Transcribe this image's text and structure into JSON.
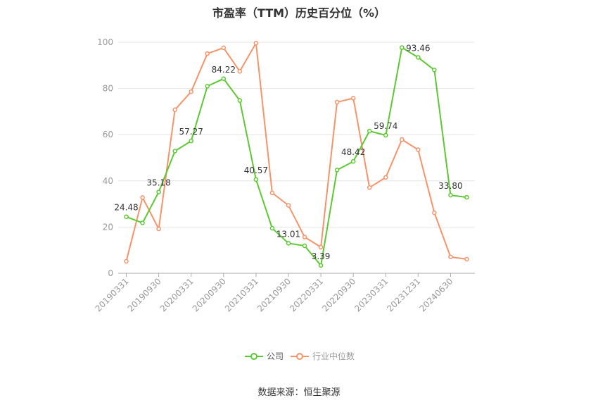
{
  "chart_data": {
    "type": "line",
    "title": "市盈率（TTM）历史百分位（%）",
    "xlabel": "",
    "ylabel": "",
    "ylim": [
      0,
      100
    ],
    "yticks": [
      0,
      20,
      40,
      60,
      80,
      100
    ],
    "grid": true,
    "legend_position": "bottom",
    "x": [
      "20190331",
      "20190630",
      "20190930",
      "20191231",
      "20200331",
      "20200630",
      "20200930",
      "20201231",
      "20210331",
      "20210630",
      "20210930",
      "20211231",
      "20220331",
      "20220630",
      "20220930",
      "20221231",
      "20230331",
      "20230630",
      "20231231",
      "20240331",
      "20240630",
      "20240930"
    ],
    "xtick_labels": [
      "20190331",
      "20190930",
      "20200331",
      "20200930",
      "20210331",
      "20210930",
      "20220331",
      "20220930",
      "20230331",
      "20231231",
      "20240630"
    ],
    "series": [
      {
        "name": "公司",
        "color": "#5dc932",
        "values": [
          24.48,
          21.8,
          35.18,
          52.9,
          57.27,
          81.0,
          84.22,
          74.8,
          40.57,
          19.5,
          13.01,
          11.9,
          3.39,
          44.7,
          48.42,
          61.6,
          59.74,
          97.7,
          93.46,
          88.0,
          33.8,
          32.9
        ],
        "labels": {
          "0": "24.48",
          "2": "35.18",
          "4": "57.27",
          "6": "84.22",
          "8": "40.57",
          "10": "13.01",
          "12": "3.39",
          "14": "48.42",
          "16": "59.74",
          "18": "93.46",
          "20": "33.80"
        }
      },
      {
        "name": "行业中位数",
        "color": "#f5946a",
        "values": [
          5.2,
          32.8,
          19.2,
          70.8,
          78.6,
          95.1,
          97.6,
          87.4,
          99.6,
          34.8,
          29.4,
          15.7,
          11.3,
          74.1,
          75.8,
          37.1,
          41.5,
          57.9,
          53.5,
          26.2,
          7.1,
          6.1
        ]
      }
    ]
  },
  "legend": {
    "company": "公司",
    "industry": "行业中位数"
  },
  "source": "数据来源：恒生聚源"
}
